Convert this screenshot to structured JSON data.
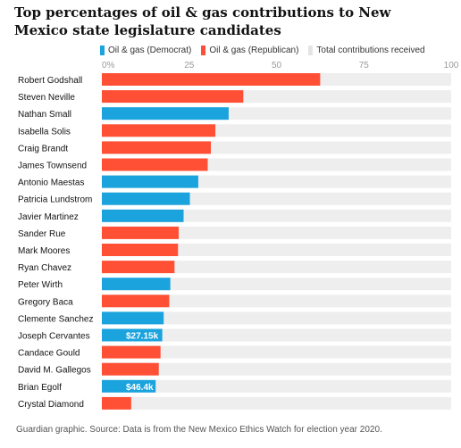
{
  "chart_data": {
    "type": "bar",
    "title": "Top percentages of oil & gas contributions to New Mexico state legislature candidates",
    "legend": [
      {
        "label": "Oil & gas (Democrat)",
        "color": "#1aa3dd"
      },
      {
        "label": "Oil & gas (Republican)",
        "color": "#ff5035"
      },
      {
        "label": "Total contributions received",
        "color": "#eeeeee"
      }
    ],
    "xlim": [
      0,
      100
    ],
    "xticks": [
      "0%",
      "25",
      "50",
      "75",
      "100"
    ],
    "grid": true,
    "bars": [
      {
        "name": "Robert Godshall",
        "party": "Republican",
        "value": 62.5,
        "label": ""
      },
      {
        "name": "Steven Neville",
        "party": "Republican",
        "value": 40.5,
        "label": ""
      },
      {
        "name": "Nathan Small",
        "party": "Democrat",
        "value": 36.3,
        "label": ""
      },
      {
        "name": "Isabella Solis",
        "party": "Republican",
        "value": 32.5,
        "label": ""
      },
      {
        "name": "Craig Brandt",
        "party": "Republican",
        "value": 31.2,
        "label": ""
      },
      {
        "name": "James Townsend",
        "party": "Republican",
        "value": 30.3,
        "label": ""
      },
      {
        "name": "Antonio Maestas",
        "party": "Democrat",
        "value": 27.6,
        "label": ""
      },
      {
        "name": "Patricia Lundstrom",
        "party": "Democrat",
        "value": 25.2,
        "label": ""
      },
      {
        "name": "Javier Martinez",
        "party": "Democrat",
        "value": 23.4,
        "label": ""
      },
      {
        "name": "Sander Rue",
        "party": "Republican",
        "value": 22.0,
        "label": ""
      },
      {
        "name": "Mark Moores",
        "party": "Republican",
        "value": 21.8,
        "label": ""
      },
      {
        "name": "Ryan Chavez",
        "party": "Republican",
        "value": 20.8,
        "label": ""
      },
      {
        "name": "Peter Wirth",
        "party": "Democrat",
        "value": 19.6,
        "label": ""
      },
      {
        "name": "Gregory Baca",
        "party": "Republican",
        "value": 19.3,
        "label": ""
      },
      {
        "name": "Clemente Sanchez",
        "party": "Democrat",
        "value": 17.7,
        "label": ""
      },
      {
        "name": "Joseph Cervantes",
        "party": "Democrat",
        "value": 17.3,
        "label": "$27.15k"
      },
      {
        "name": "Candace Gould",
        "party": "Republican",
        "value": 16.8,
        "label": ""
      },
      {
        "name": "David M. Gallegos",
        "party": "Republican",
        "value": 16.3,
        "label": ""
      },
      {
        "name": "Brian Egolf",
        "party": "Democrat",
        "value": 15.4,
        "label": "$46.4k"
      },
      {
        "name": "Crystal Diamond",
        "party": "Republican",
        "value": 8.4,
        "label": ""
      }
    ]
  },
  "footnote": "Guardian graphic. Source: Data is from the New Mexico Ethics Watch for election year 2020."
}
